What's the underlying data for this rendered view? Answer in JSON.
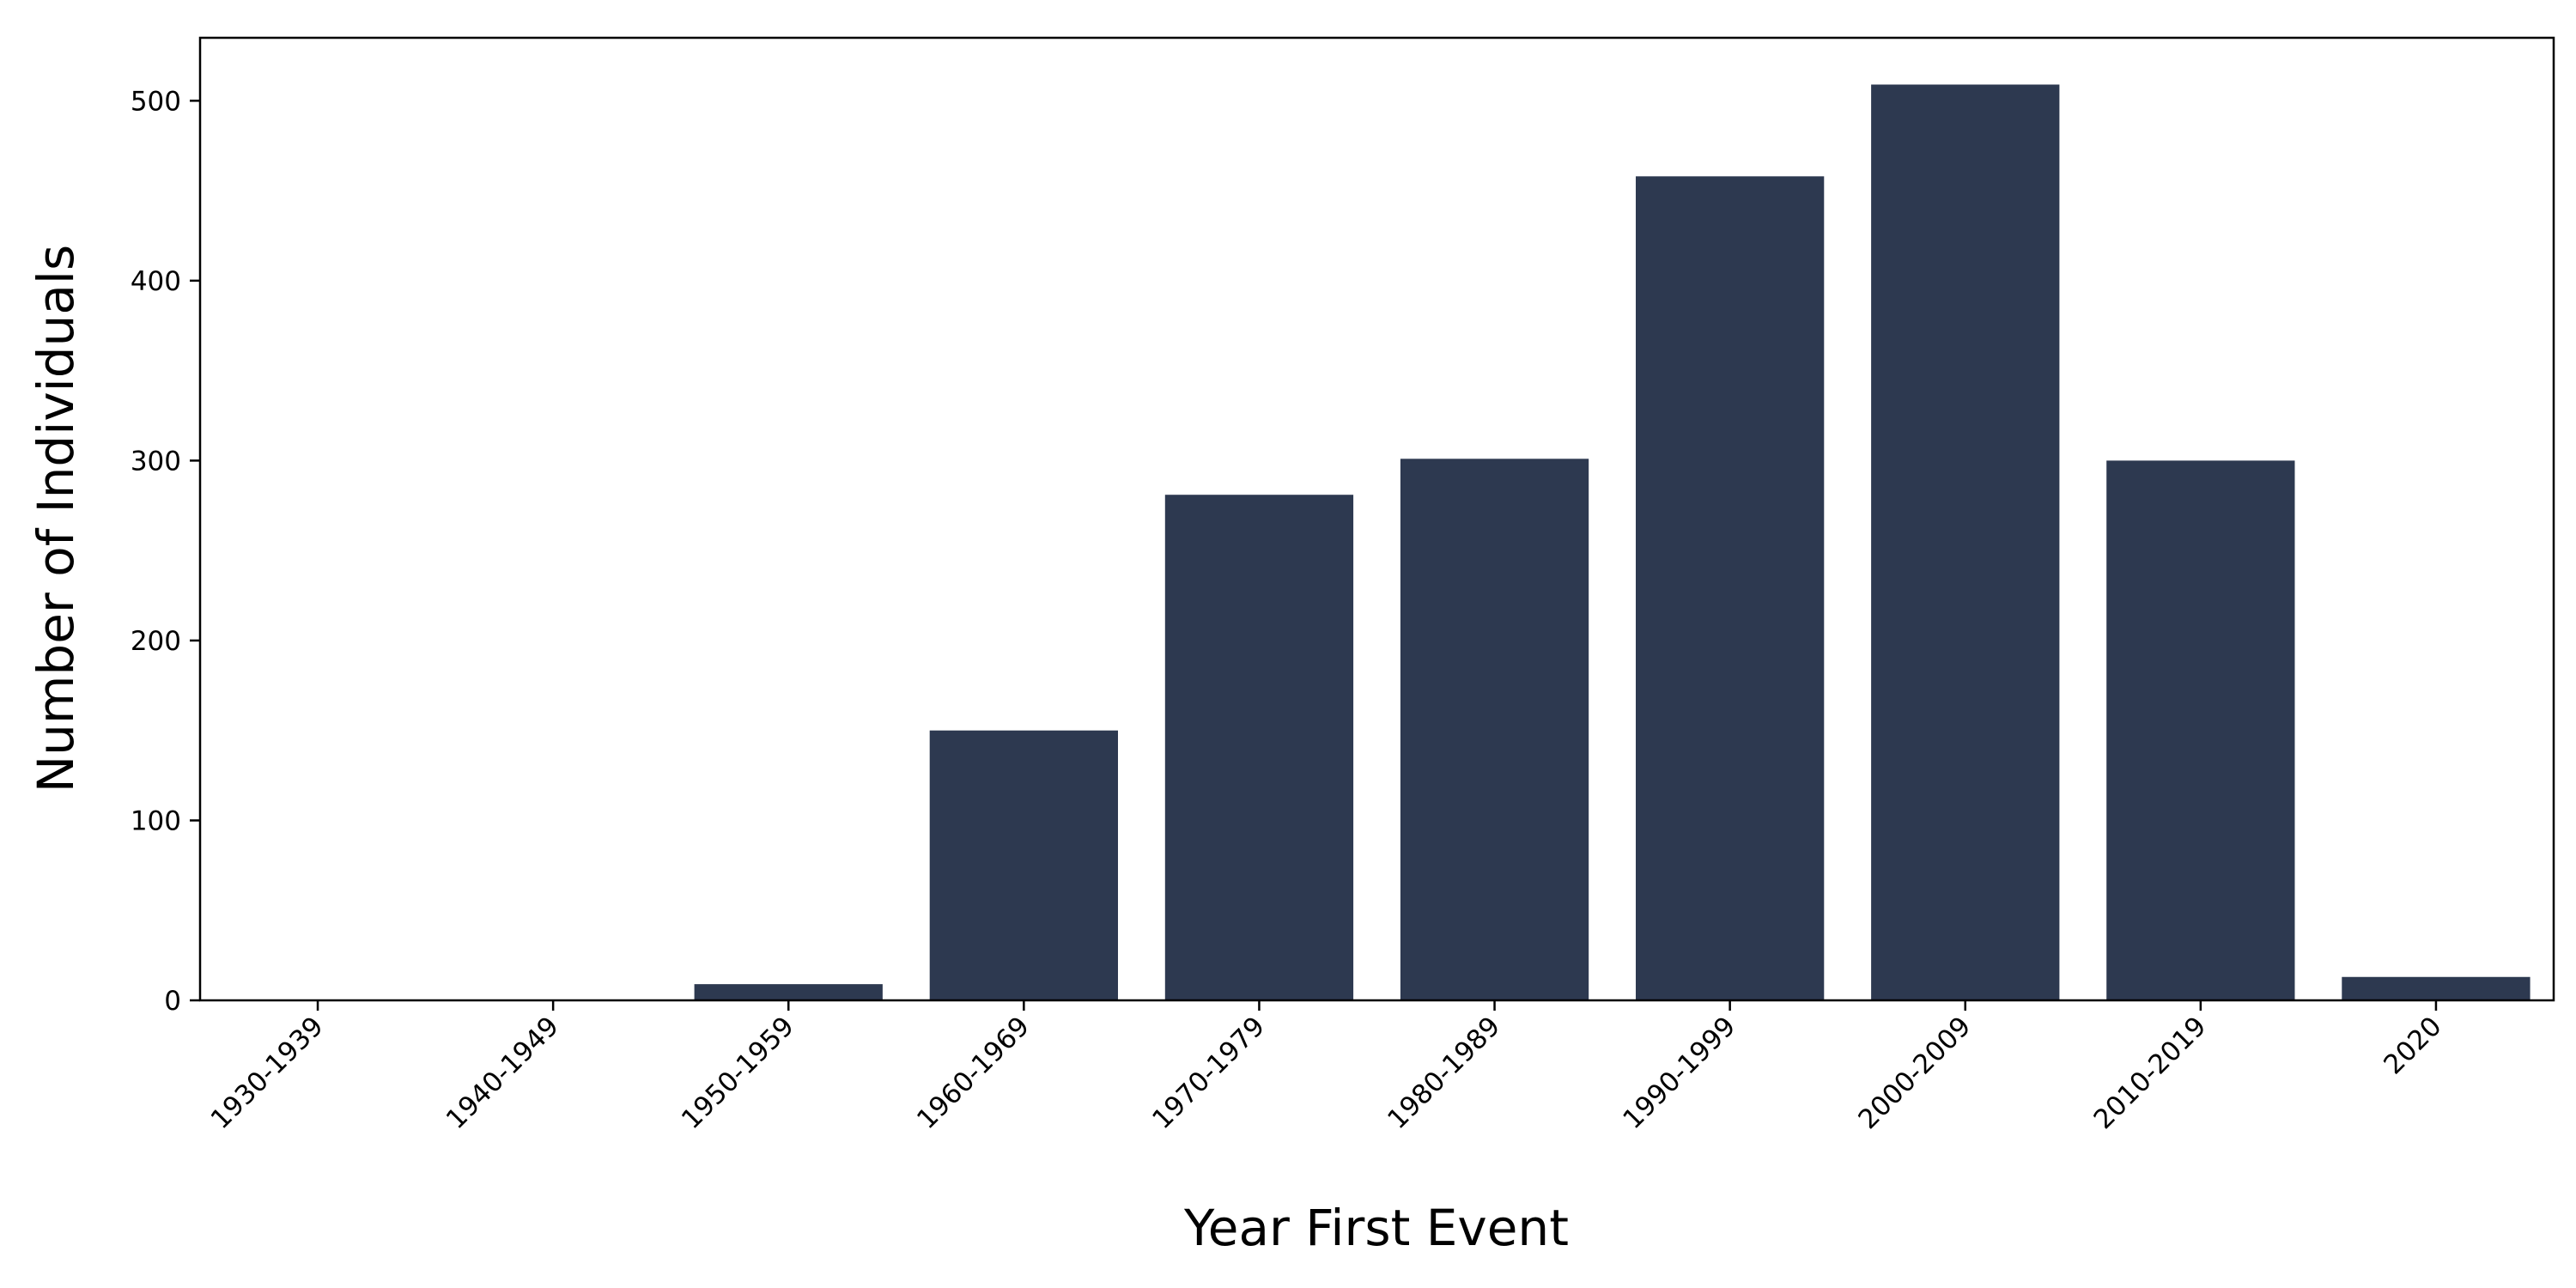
{
  "chart_data": {
    "type": "bar",
    "title": "",
    "xlabel": "Year First Event",
    "ylabel": "Number of Individuals",
    "categories": [
      "1930-1939",
      "1940-1949",
      "1950-1959",
      "1960-1969",
      "1970-1979",
      "1980-1989",
      "1990-1999",
      "2000-2009",
      "2010-2019",
      "2020"
    ],
    "values": [
      0,
      0,
      9,
      150,
      281,
      301,
      458,
      509,
      300,
      13
    ],
    "ylim": [
      0,
      535
    ],
    "yticks": [
      0,
      100,
      200,
      300,
      400,
      500
    ],
    "bar_color": "#2d3950",
    "grid": false,
    "legend": "none"
  }
}
